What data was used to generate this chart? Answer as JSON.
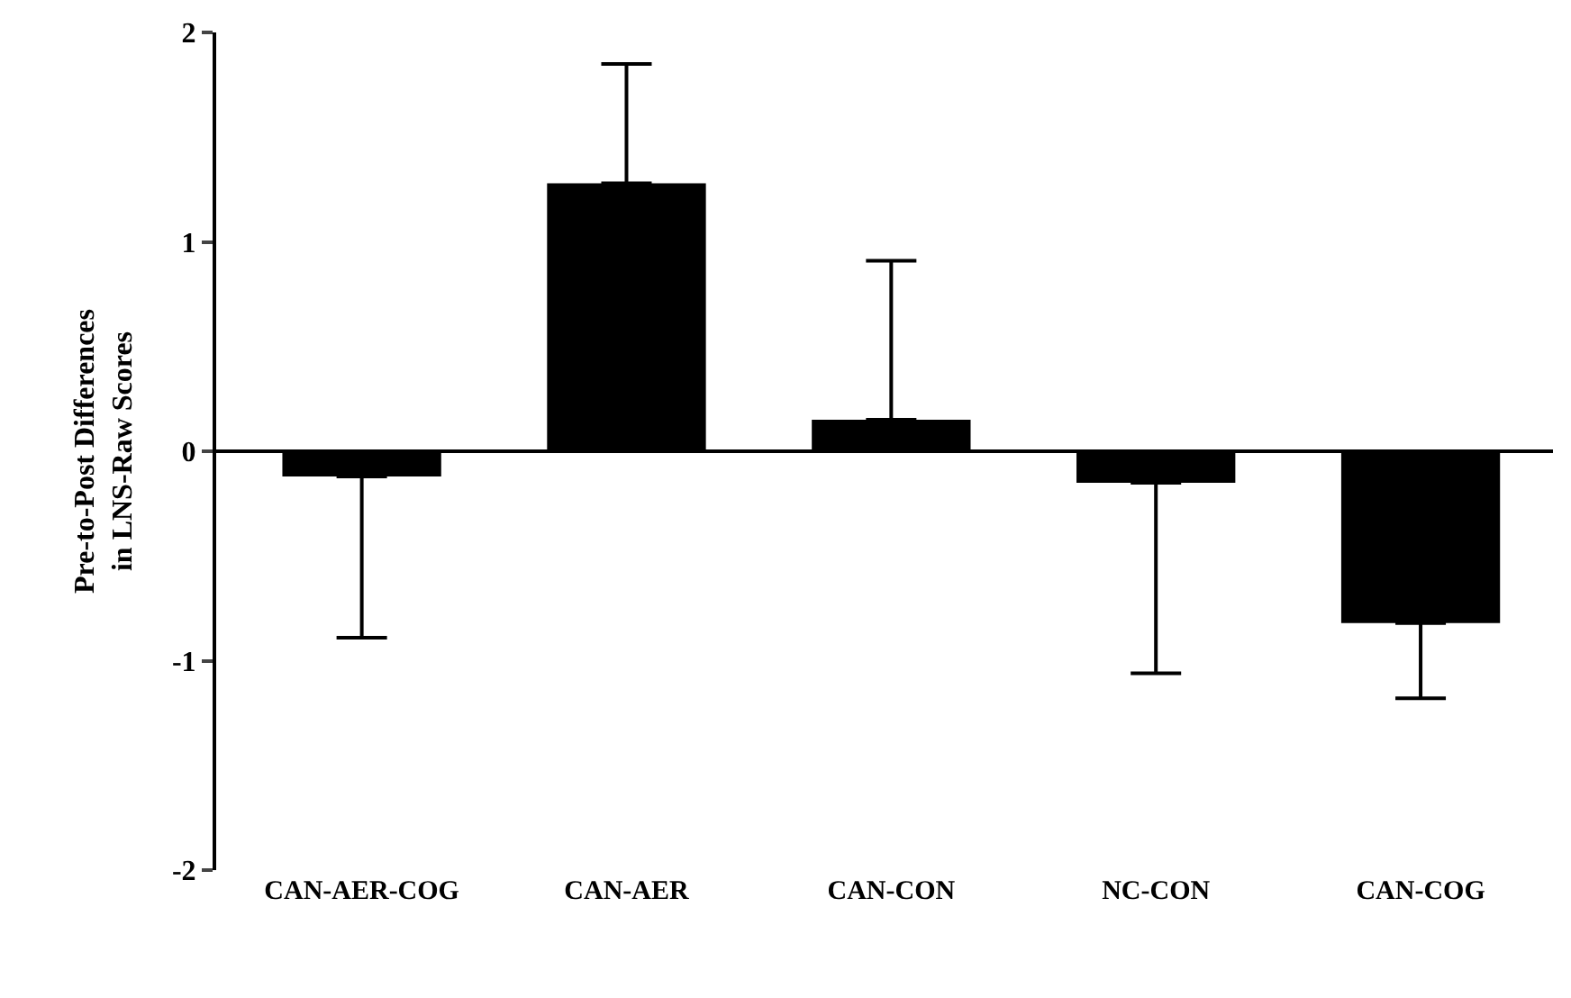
{
  "chart_data": {
    "type": "bar",
    "ylabel": "Pre-to-Post Differences\nin LNS-Raw Scores",
    "categories": [
      "CAN-AER-COG",
      "CAN-AER",
      "CAN-CON",
      "NC-CON",
      "CAN-COG"
    ],
    "values": [
      -0.12,
      1.28,
      0.15,
      -0.15,
      -0.82
    ],
    "errors": [
      [
        -0.89,
        -0.12
      ],
      [
        1.28,
        1.85
      ],
      [
        0.15,
        0.91
      ],
      [
        -1.06,
        -0.15
      ],
      [
        -1.18,
        -0.82
      ]
    ],
    "color": "#000000",
    "ylim": [
      -2,
      2
    ],
    "yticks": [
      -2,
      -1,
      0,
      1,
      2
    ]
  }
}
